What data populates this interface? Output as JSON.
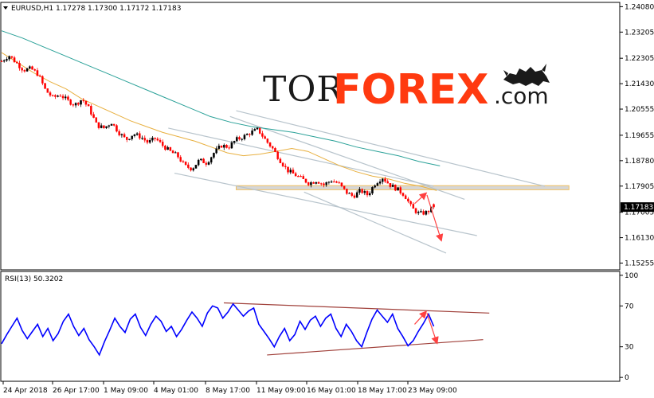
{
  "header": {
    "symbol_line": "EURUSD,H1  1.17278 1.17300 1.17172 1.17183",
    "rsi_label": "RSI(13) 50.3202"
  },
  "logo": {
    "part1": "TOR",
    "part2": "FOREX",
    "part3": ".com",
    "icon": "bull-bear-icon"
  },
  "colors": {
    "bull_candle": "#000000",
    "bear_candle": "#ff0000",
    "ma_fast": "#e8b040",
    "ma_slow": "#2aa198",
    "trend_lines": "#b8c4cc",
    "zone_fill": "#d6d6d6",
    "zone_border": "#f0c060",
    "arrows": "#ff4040",
    "rsi_line": "#0000ff",
    "rsi_channel": "#a0403a",
    "price_tag": "#000000"
  },
  "chart_data": [
    {
      "type": "candlestick",
      "symbol": "EURUSD",
      "timeframe": "H1",
      "ohlc_last": {
        "open": 1.17278,
        "high": 1.173,
        "low": 1.17172,
        "close": 1.17183
      },
      "ylim": [
        1.1505,
        1.242
      ],
      "yticks": [
        1.2408,
        1.23205,
        1.22305,
        1.2143,
        1.20555,
        1.19655,
        1.1878,
        1.17905,
        1.17005,
        1.1613,
        1.15255
      ],
      "current_price": 1.17183,
      "xtick_labels": [
        "24 Apr 2018",
        "26 Apr 17:00",
        "1 May 09:00",
        "4 May 01:00",
        "8 May 17:00",
        "11 May 09:00",
        "16 May 01:00",
        "18 May 17:00",
        "23 May 09:00"
      ],
      "price_path": [
        1.222,
        1.224,
        1.2215,
        1.219,
        1.2195,
        1.2175,
        1.212,
        1.2095,
        1.2105,
        1.2085,
        1.207,
        1.209,
        1.2055,
        1.2,
        1.199,
        1.201,
        1.1975,
        1.195,
        1.197,
        1.196,
        1.194,
        1.1955,
        1.193,
        1.191,
        1.1895,
        1.186,
        1.185,
        1.188,
        1.187,
        1.1905,
        1.193,
        1.1925,
        1.195,
        1.196,
        1.1975,
        1.1985,
        1.195,
        1.192,
        1.188,
        1.1845,
        1.183,
        1.1815,
        1.18,
        1.181,
        1.1795,
        1.181,
        1.18,
        1.177,
        1.1755,
        1.1775,
        1.176,
        1.18,
        1.182,
        1.1795,
        1.178,
        1.176,
        1.1715,
        1.1695,
        1.17,
        1.1718
      ],
      "ma_fast": [
        1.225,
        1.2215,
        1.218,
        1.215,
        1.2125,
        1.209,
        1.2065,
        1.204,
        1.2015,
        1.1995,
        1.1975,
        1.196,
        1.1945,
        1.1925,
        1.1905,
        1.1895,
        1.19,
        1.191,
        1.192,
        1.191,
        1.1885,
        1.186,
        1.184,
        1.1825,
        1.1815,
        1.18,
        1.179,
        1.1775
      ],
      "ma_slow": [
        1.2325,
        1.23,
        1.227,
        1.224,
        1.221,
        1.218,
        1.215,
        1.212,
        1.209,
        1.206,
        1.203,
        1.201,
        1.1995,
        1.1985,
        1.1975,
        1.196,
        1.1945,
        1.1925,
        1.191,
        1.1895,
        1.1875,
        1.186
      ],
      "trend_lines": [
        {
          "from": [
            0.27,
            1.199
          ],
          "to": [
            0.7,
            1.179
          ]
        },
        {
          "from": [
            0.38,
            1.205
          ],
          "to": [
            0.88,
            1.179
          ]
        },
        {
          "from": [
            0.37,
            1.203
          ],
          "to": [
            0.75,
            1.1745
          ]
        },
        {
          "from": [
            0.28,
            1.1835
          ],
          "to": [
            0.77,
            1.162
          ]
        },
        {
          "from": [
            0.49,
            1.177
          ],
          "to": [
            0.72,
            1.156
          ]
        }
      ],
      "resistance_zone": [
        1.1778,
        1.1792
      ],
      "forecast_arrows": [
        {
          "from": [
            0.669,
            1.173
          ],
          "to": [
            0.687,
            1.1765
          ]
        },
        {
          "from": [
            0.689,
            1.176
          ],
          "to": [
            0.712,
            1.1605
          ]
        }
      ]
    },
    {
      "type": "line",
      "indicator": "RSI(13)",
      "value": 50.3202,
      "ylim": [
        -3,
        103
      ],
      "yticks": [
        100,
        70,
        30,
        0
      ],
      "series": [
        {
          "values": [
            33,
            42,
            50,
            58,
            46,
            38,
            45,
            52,
            40,
            48,
            36,
            43,
            55,
            62,
            50,
            41,
            48,
            37,
            30,
            22,
            35,
            46,
            58,
            50,
            44,
            57,
            62,
            49,
            41,
            52,
            60,
            55,
            45,
            50,
            40,
            47,
            56,
            64,
            58,
            50,
            63,
            70,
            68,
            58,
            64,
            72,
            66,
            60,
            65,
            68,
            52,
            45,
            38,
            30,
            40,
            48,
            36,
            42,
            55,
            47,
            56,
            60,
            50,
            58,
            62,
            48,
            40,
            52,
            45,
            36,
            30,
            44,
            57,
            66,
            60,
            54,
            62,
            48,
            40,
            31,
            36,
            45,
            53,
            62,
            50
          ]
        }
      ],
      "channel": [
        {
          "from": [
            0.36,
            73
          ],
          "to": [
            0.79,
            63
          ]
        },
        {
          "from": [
            0.43,
            22
          ],
          "to": [
            0.78,
            37
          ]
        }
      ],
      "forecast_arrows": [
        {
          "from": [
            0.669,
            52
          ],
          "to": [
            0.687,
            64
          ]
        },
        {
          "from": [
            0.689,
            63
          ],
          "to": [
            0.705,
            34
          ]
        }
      ]
    }
  ]
}
